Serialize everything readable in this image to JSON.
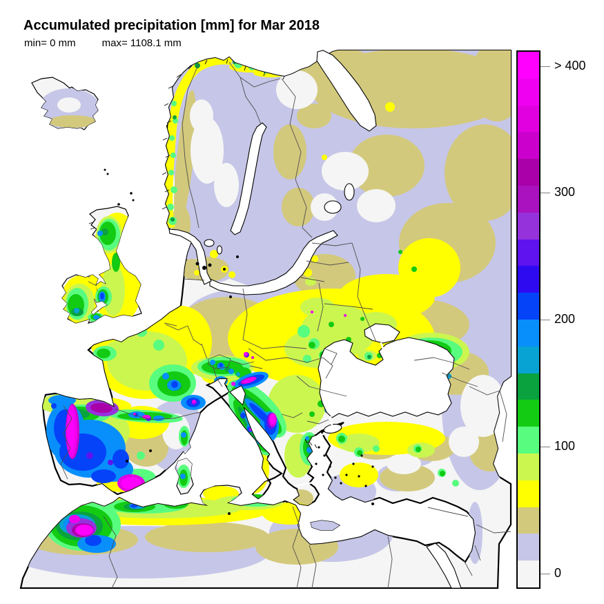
{
  "title": "Accumulated precipitation [mm] for Mar 2018",
  "stats": {
    "min_label": "min= 0 mm",
    "max_label": "max= 1108.1 mm"
  },
  "colorbar": {
    "unit": "mm",
    "segments_top_to_bottom": [
      "#FF00FF",
      "#F000F0",
      "#E000E0",
      "#CC00CC",
      "#AA00AA",
      "#A912BE",
      "#9632DC",
      "#5F13EF",
      "#2E0AF0",
      "#0443F8",
      "#088FFC",
      "#09A3D3",
      "#09A23E",
      "#12CB12",
      "#58FC7F",
      "#CBF64F",
      "#FFFF00",
      "#D3C97C",
      "#C6C6E8",
      "#F5F5F5"
    ],
    "ticks": [
      {
        "label": "> 400",
        "pos_pct": 3.0
      },
      {
        "label": "300",
        "pos_pct": 26.6
      },
      {
        "label": "200",
        "pos_pct": 50.3
      },
      {
        "label": "100",
        "pos_pct": 74.0
      },
      {
        "label": "0",
        "pos_pct": 97.7
      }
    ]
  },
  "map": {
    "sea_color": "#FFFFFF",
    "land_zero_color": "#F5F5F5",
    "coastline_color": "#000000",
    "country_border_color": "#4D4D4D",
    "value_colors": {
      "0_mm": "#F5F5F5",
      "20_mm": "#C6C6E8",
      "40_mm": "#D3C97C",
      "60_mm": "#FFFF00",
      "80_mm": "#CBF64F",
      "100_mm": "#58FC7F",
      "120_mm": "#12CB12",
      "140_mm": "#09A23E",
      "160_mm": "#09A3D3",
      "180_mm": "#088FFC",
      "200_mm": "#0443F8",
      "240_mm": "#5F13EF",
      "280_mm": "#9632DC",
      "300_mm": "#AA00AA",
      "360_mm": "#CC00CC",
      "400_mm": "#FF00FF"
    }
  }
}
